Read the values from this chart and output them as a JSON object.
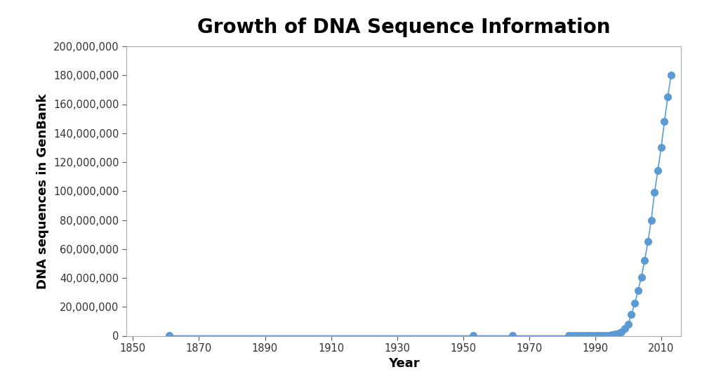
{
  "title": "Growth of DNA Sequence Information",
  "xlabel": "Year",
  "ylabel": "DNA sequences in GenBank",
  "line_color": "#5b9bd5",
  "marker_color": "#5b9bd5",
  "background_color": "#ffffff",
  "years": [
    1861,
    1953,
    1965,
    1982,
    1983,
    1984,
    1985,
    1986,
    1987,
    1988,
    1989,
    1990,
    1991,
    1992,
    1993,
    1994,
    1995,
    1996,
    1997,
    1998,
    1999,
    2000,
    2001,
    2002,
    2003,
    2004,
    2005,
    2006,
    2007,
    2008,
    2009,
    2010,
    2011,
    2012,
    2013
  ],
  "sequences": [
    1,
    2,
    5,
    606,
    2427,
    4175,
    5700,
    9978,
    14521,
    28981,
    46024,
    67482,
    100364,
    143492,
    187448,
    215273,
    555694,
    1021211,
    1765847,
    2832419,
    4864570,
    7979051,
    14976310,
    22318883,
    31100000,
    40532501,
    52000000,
    65000000,
    80000000,
    99000000,
    114000000,
    130000000,
    148000000,
    165000000,
    180000000
  ],
  "xlim": [
    1848,
    2016
  ],
  "ylim": [
    0,
    200000000
  ],
  "yticks": [
    0,
    20000000,
    40000000,
    60000000,
    80000000,
    100000000,
    120000000,
    140000000,
    160000000,
    180000000,
    200000000
  ],
  "xticks": [
    1850,
    1870,
    1890,
    1910,
    1930,
    1950,
    1970,
    1990,
    2010
  ],
  "title_fontsize": 20,
  "label_fontsize": 13,
  "tick_fontsize": 10.5,
  "marker_size": 7,
  "line_width": 1.2,
  "spine_color": "#aaaaaa",
  "tick_color": "#555555"
}
